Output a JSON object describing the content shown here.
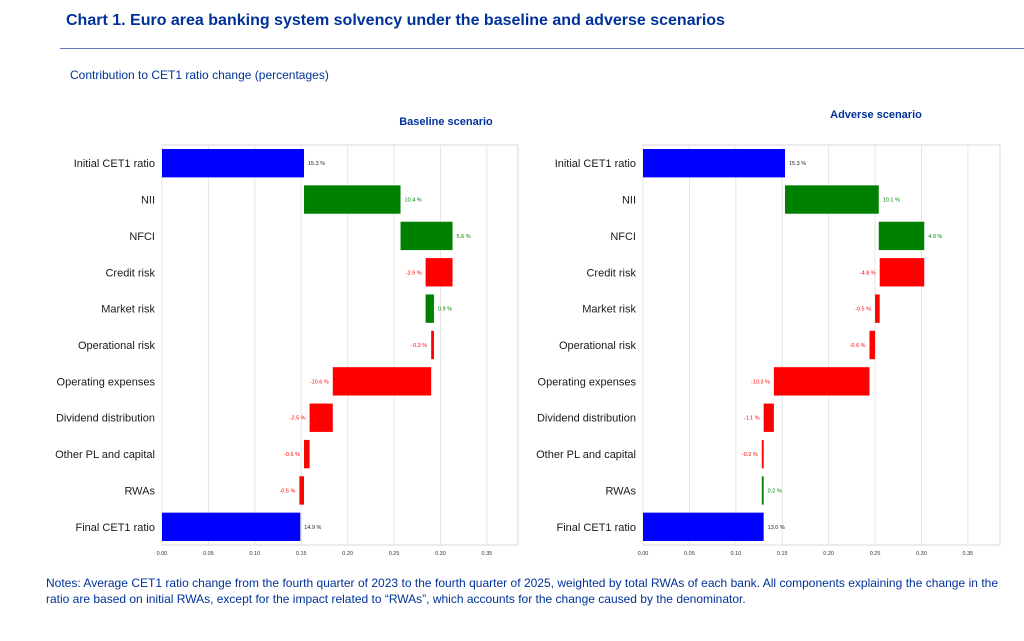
{
  "title": "Chart 1. Euro area banking system solvency under the baseline and adverse scenarios",
  "subtitle": "Contribution to CET1 ratio change (percentages)",
  "notes": "Notes: Average CET1 ratio change from the fourth quarter of 2023 to the fourth quarter of 2025, weighted by total RWAs of each bank. All components explaining the change in the ratio are based on initial RWAs, except for the impact related to “RWAs”, which accounts for the change caused by the denominator.",
  "colors": {
    "total": "#0000ff",
    "increase": "#008000",
    "decrease": "#ff0000",
    "title": "#003299"
  },
  "chart_data": [
    {
      "type": "bar",
      "title": "Baseline scenario",
      "orientation": "horizontal waterfall",
      "xlim": [
        0,
        0.39
      ],
      "xticks": [
        "0.00",
        "0.05",
        "0.10",
        "0.15",
        "0.20",
        "0.25",
        "0.30",
        "0.35"
      ],
      "grid": true,
      "categories": [
        "Initial CET1 ratio",
        "NII",
        "NFCI",
        "Credit risk",
        "Market risk",
        "Operational risk",
        "Operating expenses",
        "Dividend distribution",
        "Other PL and capital",
        "RWAs",
        "Final CET1 ratio"
      ],
      "values": [
        0.153,
        0.104,
        0.056,
        -0.029,
        0.009,
        -0.003,
        -0.106,
        -0.025,
        -0.006,
        -0.005,
        0.149
      ],
      "kinds": [
        "total",
        "change",
        "change",
        "change",
        "change",
        "change",
        "change",
        "change",
        "change",
        "change",
        "total"
      ],
      "data_labels": [
        "15.3 %",
        "10.4 %",
        "5.6 %",
        "-2.9 %",
        "0.9 %",
        "-0.3 %",
        "-10.6 %",
        "-2.5 %",
        "-0.6 %",
        "-0.5 %",
        "14.9 %"
      ]
    },
    {
      "type": "bar",
      "title": "Adverse scenario",
      "orientation": "horizontal waterfall",
      "xlim": [
        0,
        0.39
      ],
      "xticks": [
        "0.00",
        "0.05",
        "0.10",
        "0.15",
        "0.20",
        "0.25",
        "0.30",
        "0.35"
      ],
      "grid": true,
      "categories": [
        "Initial CET1 ratio",
        "NII",
        "NFCI",
        "Credit risk",
        "Market risk",
        "Operational risk",
        "Operating expenses",
        "Dividend distribution",
        "Other PL and capital",
        "RWAs",
        "Final CET1 ratio"
      ],
      "values": [
        0.153,
        0.101,
        0.049,
        -0.048,
        -0.005,
        -0.006,
        -0.103,
        -0.011,
        -0.002,
        0.002,
        0.13
      ],
      "kinds": [
        "total",
        "change",
        "change",
        "change",
        "change",
        "change",
        "change",
        "change",
        "change",
        "change",
        "total"
      ],
      "data_labels": [
        "15.3 %",
        "10.1 %",
        "4.9 %",
        "-4.8 %",
        "-0.5 %",
        "-0.6 %",
        "-10.3 %",
        "-1.1 %",
        "-0.2 %",
        "0.2 %",
        "13.0 %"
      ]
    }
  ]
}
